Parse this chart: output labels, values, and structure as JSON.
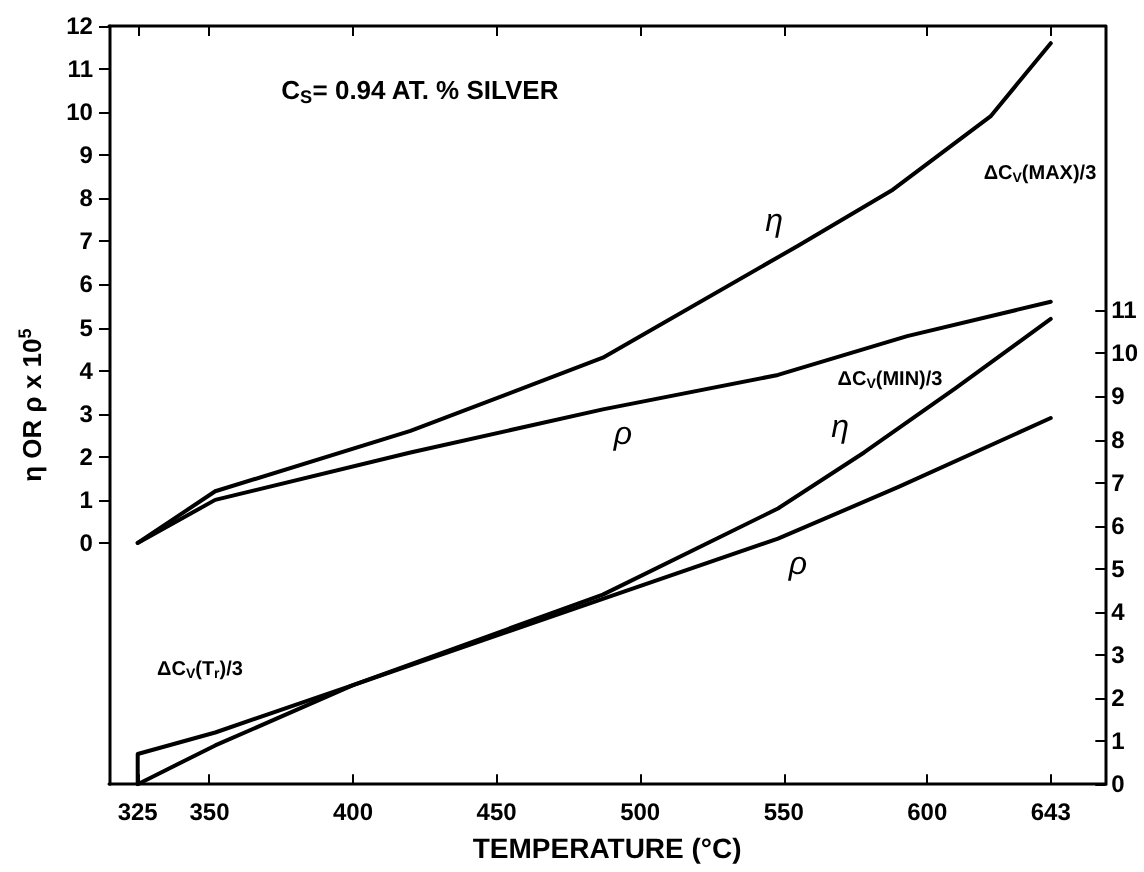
{
  "chart_data": {
    "type": "line",
    "xlabel": "TEMPERATURE (°C)",
    "ylabel": "η OR ρ x 10$^{5}$",
    "xlim": [
      315,
      662
    ],
    "xticks": [
      325,
      350,
      400,
      450,
      500,
      550,
      600,
      643
    ],
    "ylim": [
      -5.6,
      12
    ],
    "yticks": [
      0,
      1,
      2,
      3,
      4,
      5,
      6,
      7,
      8,
      9,
      10,
      11,
      12
    ],
    "y2lim": [
      0,
      17.6
    ],
    "y2ticks": [
      0,
      1,
      2,
      3,
      4,
      5,
      6,
      7,
      8,
      9,
      10,
      11
    ],
    "series": [
      {
        "name": "η",
        "color": "#000000",
        "x": [
          325,
          352,
          420,
          487,
          555,
          588,
          622,
          643
        ],
        "values": [
          0,
          1.2,
          2.6,
          4.3,
          6.9,
          8.2,
          9.9,
          11.6
        ]
      },
      {
        "name": "ρ",
        "color": "#000000",
        "x": [
          325,
          352,
          420,
          487,
          548,
          593,
          643
        ],
        "values": [
          0,
          1.0,
          2.1,
          3.1,
          3.9,
          4.8,
          5.6
        ]
      },
      {
        "name": "η",
        "color": "#000000",
        "axis": "y2",
        "x": [
          325,
          352,
          400,
          487,
          548,
          578,
          610,
          643
        ],
        "values": [
          0,
          0.9,
          2.3,
          4.4,
          6.4,
          7.7,
          9.2,
          10.8
        ]
      },
      {
        "name": "ρ",
        "color": "#000000",
        "axis": "y2",
        "x": [
          325,
          325,
          352,
          400,
          487,
          548,
          590,
          643
        ],
        "values": [
          0,
          0.7,
          1.2,
          2.3,
          4.3,
          5.7,
          6.9,
          8.5
        ]
      }
    ],
    "annotations": [
      "C$_{S}$= 0.94 AT. % SILVER",
      "ΔC$_{V}$(MAX)/3",
      "ΔC$_{V}$(MIN)/3",
      "ΔC$_{V}$(T$_{r}$)/3"
    ],
    "grid": false,
    "legend": false,
    "marker": "none",
    "line_style": "solid"
  }
}
